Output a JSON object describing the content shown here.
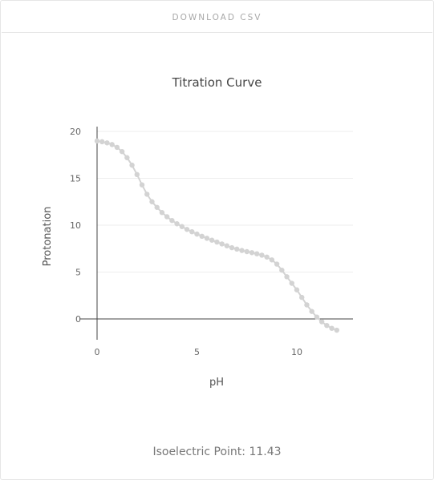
{
  "toolbar": {
    "download_label": "DOWNLOAD CSV"
  },
  "footer": {
    "isoelectric_label": "Isoelectric Point: 11.43"
  },
  "colors": {
    "series": "#d3d3d3",
    "grid": "#eeeeee",
    "axis": "#444444"
  },
  "chart_data": {
    "type": "line",
    "title": "Titration Curve",
    "xlabel": "pH",
    "ylabel": "Protonation",
    "xlim": [
      0,
      12
    ],
    "ylim": [
      -1.5,
      20
    ],
    "xticks": [
      0,
      5,
      10
    ],
    "yticks": [
      0,
      5,
      10,
      15,
      20
    ],
    "grid": true,
    "series": [
      {
        "x": [
          0,
          0.25,
          0.5,
          0.75,
          1,
          1.25,
          1.5,
          1.75,
          2,
          2.25,
          2.5,
          2.75,
          3,
          3.25,
          3.5,
          3.75,
          4,
          4.25,
          4.5,
          4.75,
          5,
          5.25,
          5.5,
          5.75,
          6,
          6.25,
          6.5,
          6.75,
          7,
          7.25,
          7.5,
          7.75,
          8,
          8.25,
          8.5,
          8.75,
          9,
          9.25,
          9.5,
          9.75,
          10,
          10.25,
          10.5,
          10.75,
          11,
          11.25,
          11.5,
          11.75,
          12
        ],
        "y": [
          18.98,
          18.9,
          18.78,
          18.6,
          18.3,
          17.85,
          17.2,
          16.4,
          15.4,
          14.3,
          13.3,
          12.5,
          11.9,
          11.35,
          10.9,
          10.5,
          10.15,
          9.85,
          9.55,
          9.3,
          9.05,
          8.82,
          8.6,
          8.4,
          8.2,
          8.0,
          7.8,
          7.6,
          7.45,
          7.3,
          7.18,
          7.07,
          6.95,
          6.8,
          6.6,
          6.3,
          5.85,
          5.2,
          4.5,
          3.8,
          3.1,
          2.3,
          1.5,
          0.8,
          0.2,
          -0.3,
          -0.7,
          -1.0,
          -1.2
        ]
      }
    ]
  }
}
